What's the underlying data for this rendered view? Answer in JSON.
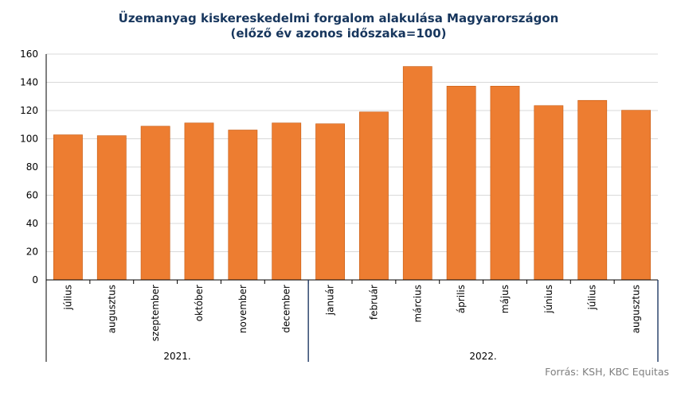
{
  "chart_data": {
    "type": "bar",
    "title": "Üzemanyag kiskereskedelmi forgalom alakulása Magyarországon",
    "subtitle": "(előző év azonos időszaka=100)",
    "categories": [
      "július",
      "augusztus",
      "szeptember",
      "október",
      "november",
      "december",
      "január",
      "február",
      "március",
      "április",
      "május",
      "június",
      "július",
      "augusztus"
    ],
    "groups": [
      {
        "label": "2021.",
        "count": 6
      },
      {
        "label": "2022.",
        "count": 8
      }
    ],
    "values": [
      102.8,
      102.2,
      108.9,
      111.2,
      106.2,
      111.2,
      110.6,
      119.0,
      151.2,
      137.3,
      137.3,
      123.5,
      127.2,
      120.2
    ],
    "ylim": [
      0,
      160
    ],
    "yticks": [
      0,
      20,
      40,
      60,
      80,
      100,
      120,
      140,
      160
    ],
    "bar_color": "#ed7d31",
    "grid": true,
    "xlabel": "",
    "ylabel": ""
  },
  "source": "Forrás: KSH, KBC Equitas"
}
